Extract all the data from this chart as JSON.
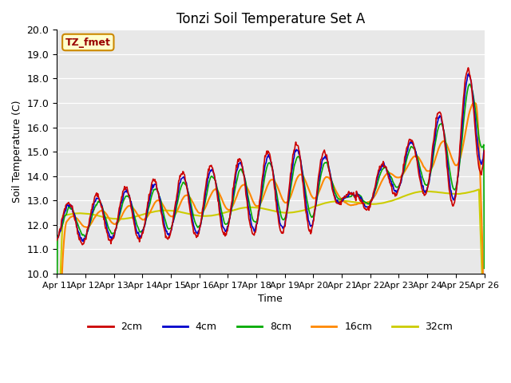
{
  "title": "Tonzi Soil Temperature Set A",
  "xlabel": "Time",
  "ylabel": "Soil Temperature (C)",
  "ylim": [
    10.0,
    20.0
  ],
  "yticks": [
    10.0,
    11.0,
    12.0,
    13.0,
    14.0,
    15.0,
    16.0,
    17.0,
    18.0,
    19.0,
    20.0
  ],
  "xtick_labels": [
    "Apr 11",
    "Apr 12",
    "Apr 13",
    "Apr 14",
    "Apr 15",
    "Apr 16",
    "Apr 17",
    "Apr 18",
    "Apr 19",
    "Apr 20",
    "Apr 21",
    "Apr 22",
    "Apr 23",
    "Apr 24",
    "Apr 25",
    "Apr 26"
  ],
  "legend_entries": [
    "2cm",
    "4cm",
    "8cm",
    "16cm",
    "32cm"
  ],
  "annotation_text": "TZ_fmet",
  "annotation_bg": "#ffffcc",
  "annotation_border": "#cc8800",
  "bg_color": "#e8e8e8",
  "line_colors": {
    "2cm": "#cc0000",
    "4cm": "#0000cc",
    "8cm": "#00aa00",
    "16cm": "#ff8800",
    "32cm": "#cccc00"
  }
}
